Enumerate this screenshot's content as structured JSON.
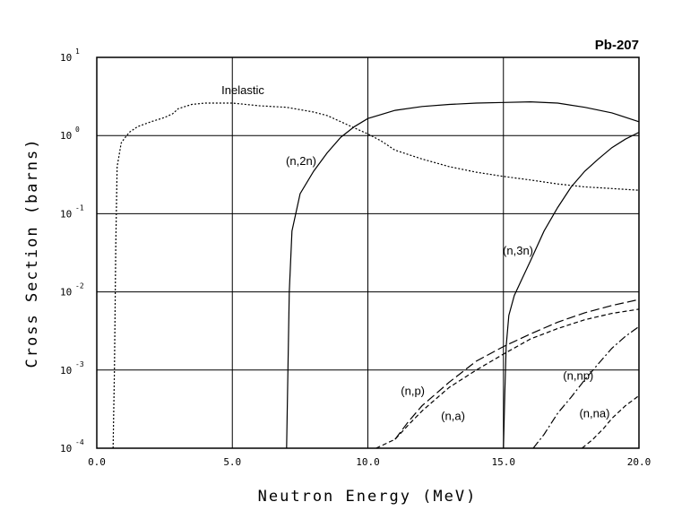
{
  "chart_data": {
    "type": "line",
    "title": "Pb-207",
    "xlabel": "Neutron Energy (MeV)",
    "ylabel": "Cross Section (barns)",
    "xlim": [
      0,
      20
    ],
    "ylim": [
      0.0001,
      10
    ],
    "yscale": "log",
    "grid": true,
    "x_ticks": [
      "0.0",
      "5.0",
      "10.0",
      "15.0",
      "20.0"
    ],
    "y_ticks": [
      {
        "base": "10",
        "exp": "-4"
      },
      {
        "base": "10",
        "exp": "-3"
      },
      {
        "base": "10",
        "exp": "-2"
      },
      {
        "base": "10",
        "exp": "-1"
      },
      {
        "base": "10",
        "exp": "0"
      },
      {
        "base": "10",
        "exp": "1"
      }
    ],
    "series": [
      {
        "name": "Inelastic",
        "style": "dotted",
        "x": [
          0.6,
          0.65,
          0.7,
          0.75,
          0.8,
          0.9,
          1.0,
          1.2,
          1.5,
          2.0,
          2.5,
          2.8,
          3.0,
          3.5,
          4.0,
          5.0,
          6.0,
          7.0,
          8.0,
          8.5,
          9.0,
          9.5,
          10.0,
          10.5,
          11.0,
          12.0,
          13.0,
          14.0,
          15.0,
          16.0,
          17.0,
          18.0,
          19.0,
          20.0
        ],
        "y": [
          0.0001,
          0.001,
          0.04,
          0.4,
          0.5,
          0.8,
          0.9,
          1.1,
          1.3,
          1.5,
          1.7,
          1.9,
          2.2,
          2.5,
          2.6,
          2.6,
          2.4,
          2.3,
          2.0,
          1.8,
          1.5,
          1.25,
          1.05,
          0.85,
          0.65,
          0.5,
          0.4,
          0.34,
          0.3,
          0.27,
          0.24,
          0.22,
          0.21,
          0.2
        ]
      },
      {
        "name": "(n,2n)",
        "style": "solid",
        "x": [
          7.0,
          7.05,
          7.1,
          7.2,
          7.5,
          8.0,
          8.5,
          9.0,
          9.5,
          10.0,
          11.0,
          12.0,
          13.0,
          14.0,
          15.0,
          16.0,
          17.0,
          18.0,
          19.0,
          20.0
        ],
        "y": [
          0.0001,
          0.001,
          0.01,
          0.06,
          0.18,
          0.35,
          0.6,
          0.95,
          1.3,
          1.65,
          2.1,
          2.35,
          2.5,
          2.6,
          2.65,
          2.7,
          2.6,
          2.3,
          1.95,
          1.5
        ]
      },
      {
        "name": "(n,3n)",
        "style": "solid",
        "x": [
          15.0,
          15.05,
          15.1,
          15.2,
          15.4,
          15.7,
          16.0,
          16.5,
          17.0,
          17.5,
          18.0,
          18.5,
          19.0,
          19.5,
          20.0
        ],
        "y": [
          0.0001,
          0.0005,
          0.002,
          0.005,
          0.009,
          0.015,
          0.025,
          0.06,
          0.12,
          0.22,
          0.35,
          0.5,
          0.7,
          0.9,
          1.1
        ]
      },
      {
        "name": "(n,p)",
        "style": "long-dash",
        "x": [
          11.0,
          11.5,
          12.0,
          13.0,
          14.0,
          15.0,
          16.0,
          17.0,
          18.0,
          19.0,
          20.0
        ],
        "y": [
          0.00013,
          0.00022,
          0.00035,
          0.0007,
          0.0013,
          0.002,
          0.0029,
          0.0041,
          0.0054,
          0.0067,
          0.008
        ]
      },
      {
        "name": "(n,a)",
        "style": "dashed",
        "x": [
          10.3,
          11.0,
          11.5,
          12.0,
          13.0,
          14.0,
          15.0,
          16.0,
          17.0,
          18.0,
          19.0,
          20.0
        ],
        "y": [
          0.0001,
          0.00013,
          0.0002,
          0.0003,
          0.0006,
          0.001,
          0.0016,
          0.0025,
          0.0034,
          0.0044,
          0.0053,
          0.006
        ]
      },
      {
        "name": "(n,np)",
        "style": "dash-dot",
        "x": [
          16.1,
          16.5,
          17.0,
          17.5,
          18.0,
          18.5,
          19.0,
          19.5,
          20.0
        ],
        "y": [
          0.0001,
          0.00015,
          0.00028,
          0.00045,
          0.00075,
          0.0012,
          0.0019,
          0.0027,
          0.0036
        ]
      },
      {
        "name": "(n,na)",
        "style": "dashed",
        "x": [
          17.9,
          18.3,
          18.7,
          19.0,
          19.5,
          20.0
        ],
        "y": [
          0.0001,
          0.00013,
          0.00018,
          0.00024,
          0.00035,
          0.00047
        ]
      }
    ]
  }
}
